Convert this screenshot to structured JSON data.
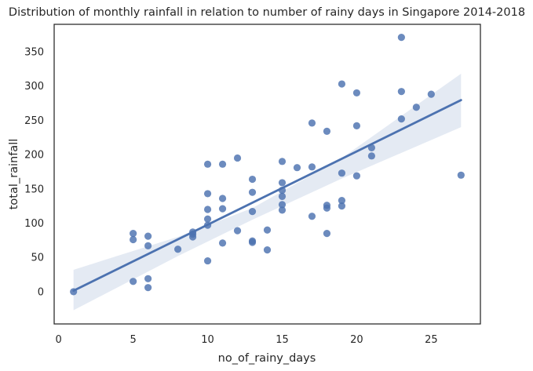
{
  "chart_data": {
    "type": "scatter",
    "title": "Distribution of monthly rainfall in relation to number of rainy days in Singapore 2014-2018",
    "xlabel": "no_of_rainy_days",
    "ylabel": "total_rainfall",
    "xlim": [
      -0.3,
      28.3
    ],
    "ylim": [
      -47,
      390
    ],
    "xticks": [
      0,
      5,
      10,
      15,
      20,
      25
    ],
    "yticks": [
      0,
      50,
      100,
      150,
      200,
      250,
      300,
      350
    ],
    "grid": false,
    "legend": "none",
    "colors": {
      "points": "#4c72b0",
      "line": "#4c72b0",
      "ci_band": "#4c72b0"
    },
    "points": [
      [
        1,
        0
      ],
      [
        5,
        85
      ],
      [
        5,
        76
      ],
      [
        5,
        15
      ],
      [
        6,
        81
      ],
      [
        6,
        67
      ],
      [
        6,
        19
      ],
      [
        6,
        6
      ],
      [
        8,
        62
      ],
      [
        9,
        87
      ],
      [
        9,
        84
      ],
      [
        9,
        80
      ],
      [
        10,
        186
      ],
      [
        10,
        143
      ],
      [
        10,
        120
      ],
      [
        10,
        106
      ],
      [
        10,
        97
      ],
      [
        10,
        45
      ],
      [
        11,
        186
      ],
      [
        11,
        136
      ],
      [
        11,
        121
      ],
      [
        11,
        71
      ],
      [
        12,
        195
      ],
      [
        12,
        89
      ],
      [
        13,
        164
      ],
      [
        13,
        145
      ],
      [
        13,
        117
      ],
      [
        13,
        74
      ],
      [
        13,
        72
      ],
      [
        14,
        90
      ],
      [
        14,
        61
      ],
      [
        15,
        190
      ],
      [
        15,
        159
      ],
      [
        15,
        148
      ],
      [
        15,
        139
      ],
      [
        15,
        127
      ],
      [
        15,
        119
      ],
      [
        16,
        181
      ],
      [
        17,
        246
      ],
      [
        17,
        182
      ],
      [
        17,
        110
      ],
      [
        18,
        234
      ],
      [
        18,
        126
      ],
      [
        18,
        122
      ],
      [
        18,
        85
      ],
      [
        19,
        303
      ],
      [
        19,
        173
      ],
      [
        19,
        133
      ],
      [
        19,
        125
      ],
      [
        20,
        290
      ],
      [
        20,
        242
      ],
      [
        20,
        169
      ],
      [
        21,
        210
      ],
      [
        21,
        198
      ],
      [
        23,
        371
      ],
      [
        23,
        292
      ],
      [
        23,
        252
      ],
      [
        24,
        269
      ],
      [
        25,
        288
      ],
      [
        27,
        170
      ]
    ],
    "regression_line": {
      "x": [
        1,
        27
      ],
      "y": [
        1.5,
        279.5
      ]
    },
    "confidence_band": {
      "x": [
        1,
        8,
        13,
        19,
        27
      ],
      "lower": [
        -27,
        52,
        105,
        165,
        240
      ],
      "upper": [
        32,
        80,
        122,
        195,
        318
      ]
    }
  }
}
